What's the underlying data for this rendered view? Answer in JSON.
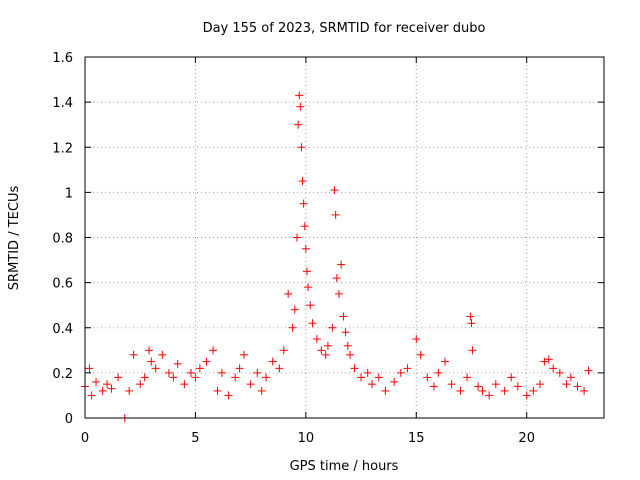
{
  "chart_data": {
    "type": "scatter",
    "title": "Day 155 of 2023, SRMTID for receiver dubo",
    "xlabel": "GPS time / hours",
    "ylabel": "SRMTID / TECUs",
    "xlim": [
      0,
      23.5
    ],
    "ylim": [
      0,
      1.6
    ],
    "xticks": [
      0,
      5,
      10,
      15,
      20
    ],
    "xtick_labels": [
      "0",
      "5",
      "10",
      "15",
      "20"
    ],
    "yticks": [
      0,
      0.2,
      0.4,
      0.6,
      0.8,
      1.0,
      1.2,
      1.4,
      1.6
    ],
    "ytick_labels": [
      "0",
      "0.2",
      "0.4",
      "0.6",
      "0.8",
      "1",
      "1.2",
      "1.4",
      "1.6"
    ],
    "grid": true,
    "marker": "plus",
    "series": [
      {
        "name": "SRMTID",
        "color": "#ff0000",
        "x": [
          0.0,
          0.2,
          0.3,
          0.5,
          0.8,
          1.0,
          1.2,
          1.5,
          1.8,
          2.0,
          2.2,
          2.5,
          2.7,
          2.9,
          3.0,
          3.2,
          3.5,
          3.8,
          4.0,
          4.2,
          4.5,
          4.8,
          5.0,
          5.2,
          5.5,
          5.8,
          6.0,
          6.2,
          6.5,
          6.8,
          7.0,
          7.2,
          7.5,
          7.8,
          8.0,
          8.2,
          8.5,
          8.8,
          9.0,
          9.2,
          9.4,
          9.5,
          9.6,
          9.65,
          9.7,
          9.75,
          9.8,
          9.85,
          9.9,
          9.95,
          10.0,
          10.05,
          10.1,
          10.2,
          10.3,
          10.5,
          10.7,
          10.9,
          11.0,
          11.2,
          11.3,
          11.35,
          11.4,
          11.5,
          11.6,
          11.7,
          11.8,
          11.9,
          12.0,
          12.2,
          12.5,
          12.8,
          13.0,
          13.3,
          13.6,
          14.0,
          14.3,
          14.6,
          15.0,
          15.2,
          15.5,
          15.8,
          16.0,
          16.3,
          16.6,
          17.0,
          17.3,
          17.45,
          17.5,
          17.55,
          17.8,
          18.0,
          18.3,
          18.6,
          19.0,
          19.3,
          19.6,
          20.0,
          20.3,
          20.6,
          20.8,
          21.0,
          21.2,
          21.5,
          21.8,
          22.0,
          22.3,
          22.6,
          22.8
        ],
        "y": [
          0.14,
          0.22,
          0.1,
          0.16,
          0.12,
          0.15,
          0.13,
          0.18,
          0.0,
          0.12,
          0.28,
          0.15,
          0.18,
          0.3,
          0.25,
          0.22,
          0.28,
          0.2,
          0.18,
          0.24,
          0.15,
          0.2,
          0.18,
          0.22,
          0.25,
          0.3,
          0.12,
          0.2,
          0.1,
          0.18,
          0.22,
          0.28,
          0.15,
          0.2,
          0.12,
          0.18,
          0.25,
          0.22,
          0.3,
          0.55,
          0.4,
          0.48,
          0.8,
          1.3,
          1.43,
          1.38,
          1.2,
          1.05,
          0.95,
          0.85,
          0.75,
          0.65,
          0.58,
          0.5,
          0.42,
          0.35,
          0.3,
          0.28,
          0.32,
          0.4,
          1.01,
          0.9,
          0.62,
          0.55,
          0.68,
          0.45,
          0.38,
          0.32,
          0.28,
          0.22,
          0.18,
          0.2,
          0.15,
          0.18,
          0.12,
          0.16,
          0.2,
          0.22,
          0.35,
          0.28,
          0.18,
          0.14,
          0.2,
          0.25,
          0.15,
          0.12,
          0.18,
          0.45,
          0.42,
          0.3,
          0.14,
          0.12,
          0.1,
          0.15,
          0.12,
          0.18,
          0.14,
          0.1,
          0.12,
          0.15,
          0.25,
          0.26,
          0.22,
          0.2,
          0.15,
          0.18,
          0.14,
          0.12,
          0.21
        ]
      }
    ]
  }
}
